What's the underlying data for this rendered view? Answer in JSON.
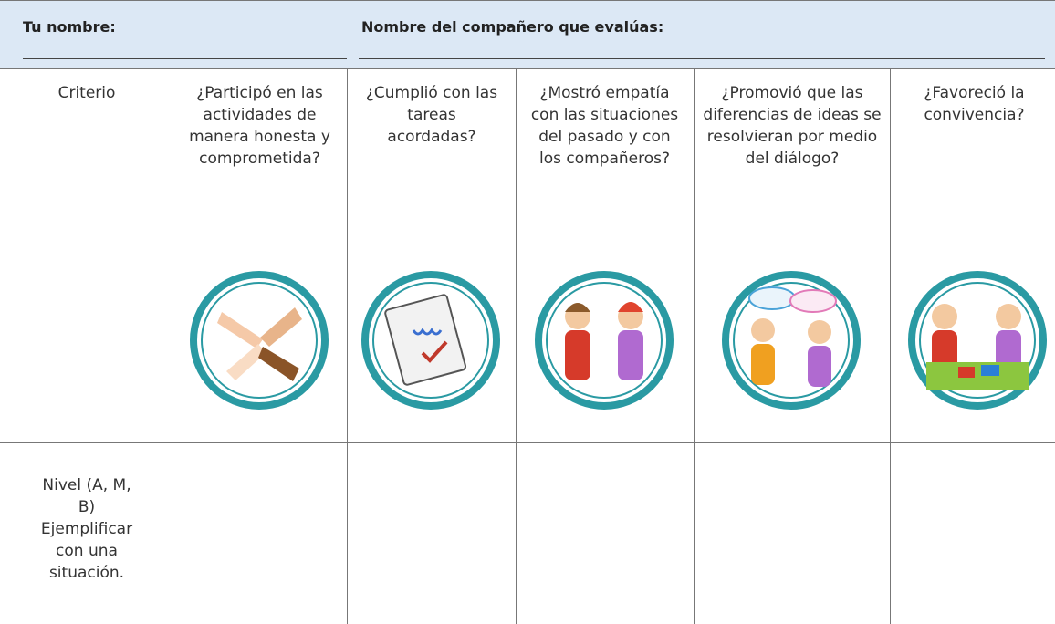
{
  "header": {
    "name_label": "Tu nombre:",
    "partner_label": "Nombre del compañero que evalúas:"
  },
  "table": {
    "criteria_row": [
      "Criterio",
      "¿Participó en las actividades de manera honesta y comprometida?",
      "¿Cumplió con las tareas acordadas?",
      "¿Mostró empatía con las situaciones del pasado y con los compañeros?",
      "¿Promovió que las diferencias de ideas se resolvieran por medio del diálogo?",
      "¿Favoreció la convivencia?"
    ],
    "level_row": [
      "Nivel (A, M, B) Ejemplificar con una situación."
    ]
  }
}
